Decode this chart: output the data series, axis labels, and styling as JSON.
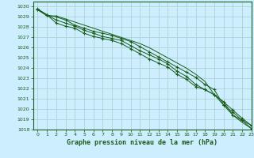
{
  "title": "Graphe pression niveau de la mer (hPa)",
  "bg_color": "#cceeff",
  "grid_color": "#aacccc",
  "line_color": "#1a5c1a",
  "xlim": [
    -0.5,
    23
  ],
  "ylim": [
    1018,
    1030.5
  ],
  "yticks": [
    1018,
    1019,
    1020,
    1021,
    1022,
    1023,
    1024,
    1025,
    1026,
    1027,
    1028,
    1029,
    1030
  ],
  "xticks": [
    0,
    1,
    2,
    3,
    4,
    5,
    6,
    7,
    8,
    9,
    10,
    11,
    12,
    13,
    14,
    15,
    16,
    17,
    18,
    19,
    20,
    21,
    22,
    23
  ],
  "series": [
    {
      "y": [
        1029.7,
        1029.1,
        1029.1,
        1028.8,
        1028.5,
        1028.2,
        1027.9,
        1027.6,
        1027.3,
        1027.0,
        1026.7,
        1026.4,
        1026.0,
        1025.5,
        1025.0,
        1024.5,
        1024.0,
        1023.4,
        1022.7,
        1021.4,
        1020.7,
        1019.4,
        1018.7,
        1018.1
      ],
      "marker": false
    },
    {
      "y": [
        1029.7,
        1029.2,
        1028.7,
        1028.4,
        1028.1,
        1027.7,
        1027.4,
        1027.1,
        1026.9,
        1026.7,
        1026.2,
        1025.7,
        1025.3,
        1024.9,
        1024.4,
        1023.7,
        1023.2,
        1022.4,
        1021.9,
        1021.4,
        1020.4,
        1019.4,
        1018.9,
        1018.4
      ],
      "marker": true
    },
    {
      "y": [
        1029.7,
        1029.2,
        1028.4,
        1028.1,
        1027.9,
        1027.4,
        1027.1,
        1026.9,
        1026.7,
        1026.4,
        1025.9,
        1025.4,
        1024.9,
        1024.5,
        1024.1,
        1023.4,
        1022.9,
        1022.2,
        1021.9,
        1021.4,
        1020.7,
        1019.9,
        1019.1,
        1018.4
      ],
      "marker": true
    },
    {
      "y": [
        1029.8,
        1029.2,
        1029.0,
        1028.7,
        1028.2,
        1027.9,
        1027.6,
        1027.4,
        1027.2,
        1026.9,
        1026.6,
        1026.1,
        1025.6,
        1025.1,
        1024.6,
        1024.1,
        1023.6,
        1023.1,
        1022.4,
        1021.9,
        1020.4,
        1019.7,
        1018.9,
        1018.1
      ],
      "marker": true
    }
  ]
}
